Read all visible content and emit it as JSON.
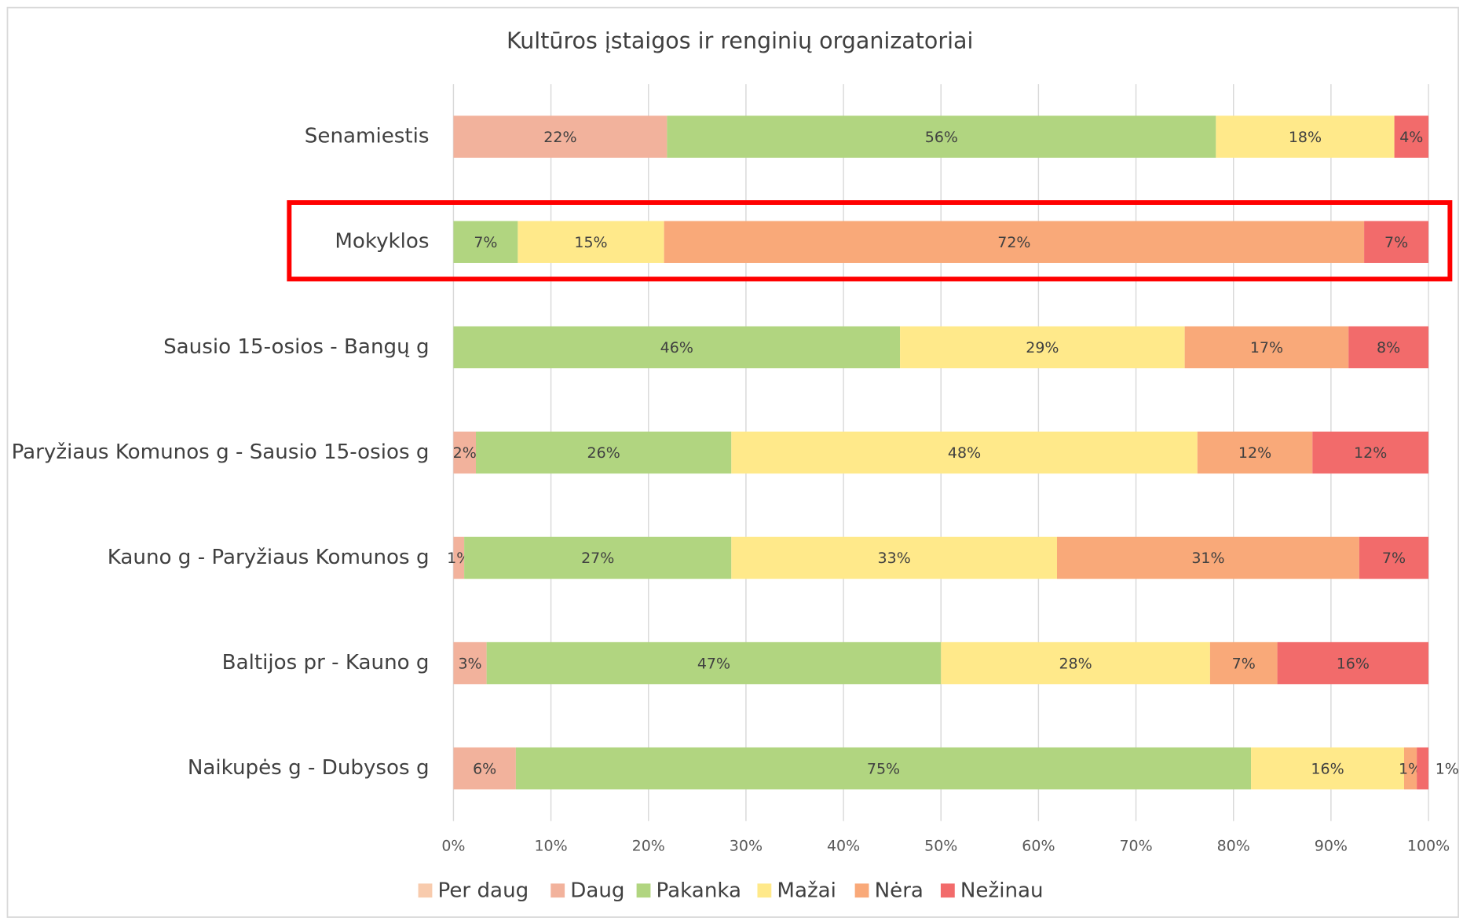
{
  "chart_data": {
    "type": "stacked-bar-horizontal",
    "title": "Kultūros įstaigos ir renginių organizatoriai",
    "categories": [
      "Senamiestis",
      "Mokyklos",
      "Sausio 15-osios - Bangų g",
      "Paryžiaus Komunos g - Sausio 15-osios g",
      "Kauno g - Paryžiaus Komunos g",
      "Baltijos pr - Kauno g",
      "Naikupės g - Dubysos g"
    ],
    "series": [
      {
        "name": "Per daug",
        "color": "#f8cbad",
        "values": [
          null,
          null,
          null,
          null,
          null,
          null,
          null
        ],
        "value_labels": [
          null,
          null,
          null,
          null,
          null,
          null,
          null
        ]
      },
      {
        "name": "Daug",
        "color": "#f2b29c",
        "values": [
          21.9,
          null,
          null,
          2.3,
          1.1,
          3.4,
          6.4
        ],
        "value_labels": [
          "22%",
          null,
          null,
          "2%",
          "1%",
          "3%",
          "6%"
        ]
      },
      {
        "name": "Pakanka",
        "color": "#b1d580",
        "values": [
          56.3,
          6.6,
          45.8,
          26.2,
          27.4,
          46.6,
          75.4
        ],
        "value_labels": [
          "56%",
          "7%",
          "46%",
          "26%",
          "27%",
          "47%",
          "75%"
        ]
      },
      {
        "name": "Mažai",
        "color": "#ffe98a",
        "values": [
          18.3,
          15.0,
          29.2,
          47.8,
          33.4,
          27.6,
          15.7
        ],
        "value_labels": [
          "18%",
          "15%",
          "29%",
          "48%",
          "33%",
          "28%",
          "16%"
        ]
      },
      {
        "name": "Nėra",
        "color": "#f9a979",
        "values": [
          null,
          71.8,
          16.8,
          11.8,
          31.0,
          6.9,
          1.3
        ],
        "value_labels": [
          null,
          "72%",
          "17%",
          "12%",
          "31%",
          "7%",
          "1%"
        ]
      },
      {
        "name": "Nežinau",
        "color": "#f26b6b",
        "values": [
          3.5,
          6.6,
          8.2,
          11.9,
          7.1,
          15.5,
          1.2
        ],
        "value_labels": [
          "4%",
          "7%",
          "8%",
          "12%",
          "7%",
          "16%",
          "1%"
        ]
      }
    ],
    "xlim": [
      0,
      100
    ],
    "xticks": [
      {
        "value": 0,
        "label": "0%"
      },
      {
        "value": 10,
        "label": "10%"
      },
      {
        "value": 20,
        "label": "20%"
      },
      {
        "value": 30,
        "label": "30%"
      },
      {
        "value": 40,
        "label": "40%"
      },
      {
        "value": 50,
        "label": "50%"
      },
      {
        "value": 60,
        "label": "60%"
      },
      {
        "value": 70,
        "label": "70%"
      },
      {
        "value": 80,
        "label": "80%"
      },
      {
        "value": 90,
        "label": "90%"
      },
      {
        "value": 100,
        "label": "100%"
      }
    ],
    "grid": true,
    "legend": "bottom"
  }
}
